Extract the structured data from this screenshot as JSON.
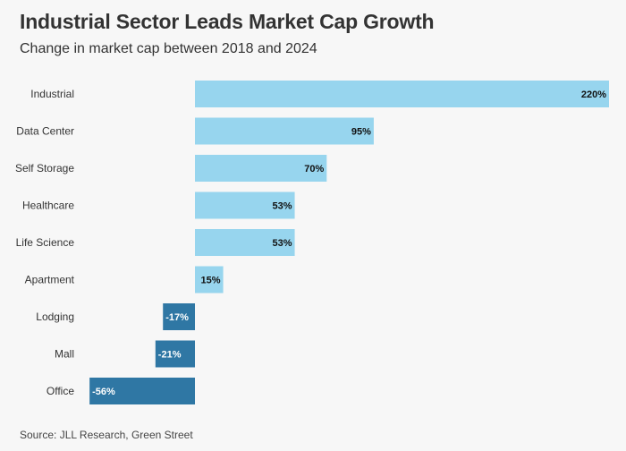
{
  "title": "Industrial Sector Leads Market Cap Growth",
  "subtitle": "Change in market cap between 2018 and 2024",
  "source": "Source: JLL Research, Green Street",
  "colors": {
    "positive": "#97d5ee",
    "negative": "#2f77a4",
    "positive_label": "#111111",
    "negative_label": "#ffffff",
    "background": "#f7f7f7"
  },
  "chart_data": {
    "type": "bar",
    "orientation": "horizontal",
    "title": "Industrial Sector Leads Market Cap Growth",
    "subtitle": "Change in market cap between 2018 and 2024",
    "categories": [
      "Industrial",
      "Data Center",
      "Self Storage",
      "Healthcare",
      "Life Science",
      "Apartment",
      "Lodging",
      "Mall",
      "Office"
    ],
    "values": [
      220,
      95,
      70,
      53,
      53,
      15,
      -17,
      -21,
      -56
    ],
    "value_labels": [
      "220%",
      "95%",
      "70%",
      "53%",
      "53%",
      "15%",
      "-17%",
      "-21%",
      "-56%"
    ],
    "unit": "%",
    "xlim": [
      -56,
      220
    ],
    "xlabel": "",
    "ylabel": "",
    "grid": false,
    "legend": "none"
  }
}
